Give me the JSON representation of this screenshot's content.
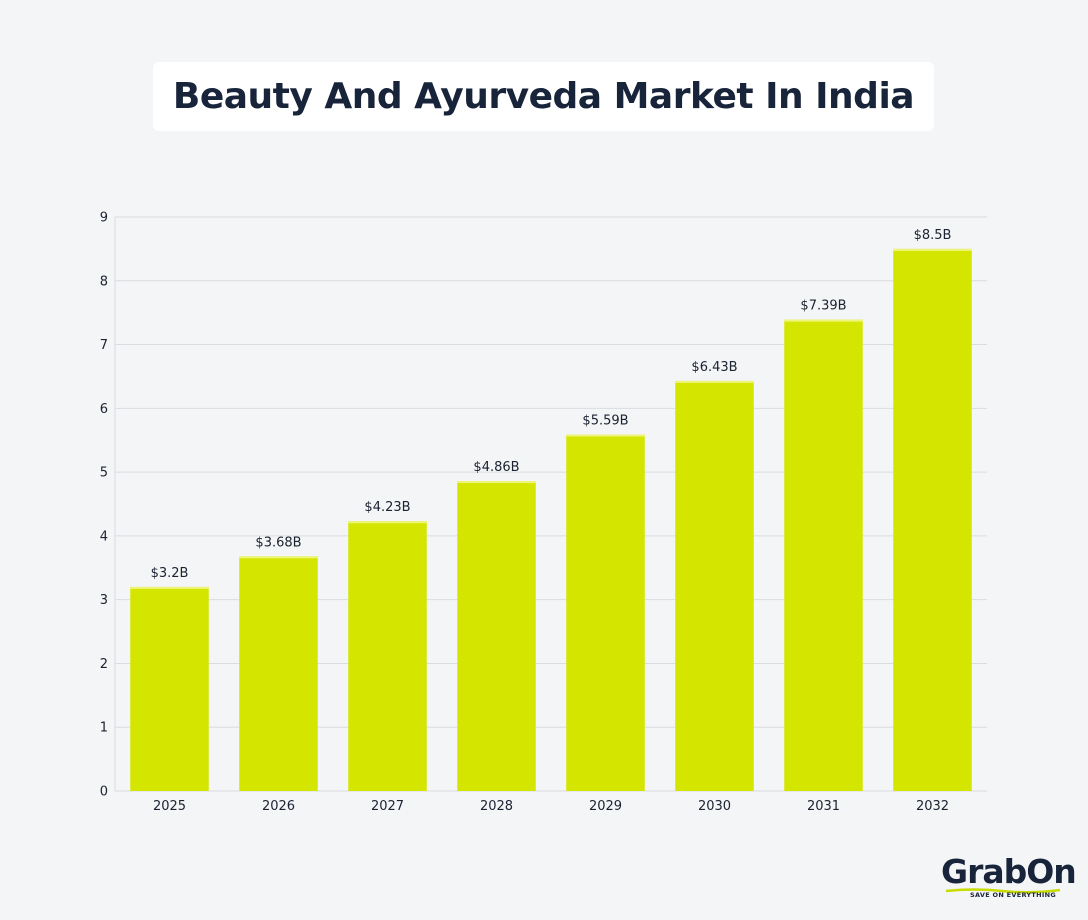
{
  "title": "Beauty And Ayurveda Market In India",
  "brand": {
    "name": "GrabOn",
    "tagline": "SAVE ON EVERYTHING"
  },
  "colors": {
    "bar": "#d4e600",
    "bar_top": "#eef57a",
    "grid": "#d9dce1",
    "text": "#1b2230",
    "background": "#f4f5f7"
  },
  "chart_data": {
    "type": "bar",
    "title": "Beauty And Ayurveda Market In India",
    "xlabel": "",
    "ylabel": "",
    "categories": [
      "2025",
      "2026",
      "2027",
      "2028",
      "2029",
      "2030",
      "2031",
      "2032"
    ],
    "values": [
      3.2,
      3.68,
      4.23,
      4.86,
      5.59,
      6.43,
      7.39,
      8.5
    ],
    "data_labels": [
      "$3.2B",
      "$3.68B",
      "$4.23B",
      "$4.86B",
      "$5.59B",
      "$6.43B",
      "$7.39B",
      "$8.5B"
    ],
    "yticks": [
      0,
      1,
      2,
      3,
      4,
      5,
      6,
      7,
      8,
      9
    ],
    "ylim": [
      0,
      9
    ],
    "grid": true,
    "legend": "none"
  }
}
